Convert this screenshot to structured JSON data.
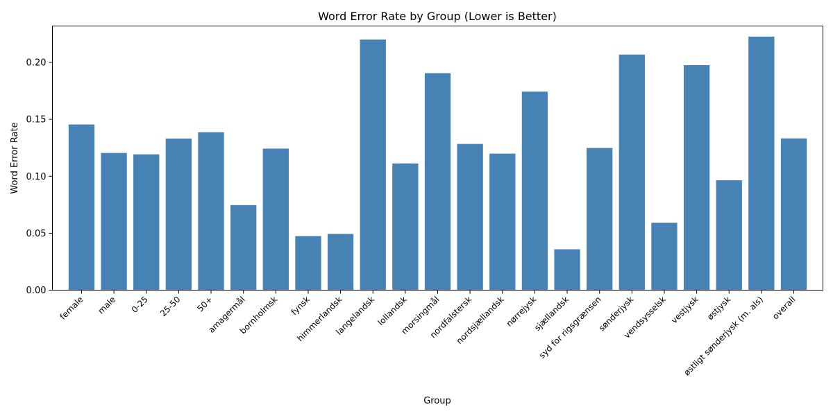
{
  "chart_data": {
    "type": "bar",
    "title": "Word Error Rate by Group (Lower is Better)",
    "xlabel": "Group",
    "ylabel": "Word Error Rate",
    "ylim": [
      0,
      0.232
    ],
    "yticks": [
      "0.00",
      "0.05",
      "0.10",
      "0.15",
      "0.20"
    ],
    "ytick_values": [
      0,
      0.05,
      0.1,
      0.15,
      0.2
    ],
    "grid": false,
    "bar_color": "#4682b4",
    "categories": [
      "female",
      "male",
      "0-25",
      "25-50",
      "50+",
      "amagermål",
      "bornholmsk",
      "fynsk",
      "himmerlandsk",
      "langelandsk",
      "lollandsk",
      "morsingmål",
      "nordfalstersk",
      "nordsjællandsk",
      "nørrejysk",
      "sjællandsk",
      "syd for rigsgrænsen",
      "sønderjysk",
      "vendsysselsk",
      "vestjysk",
      "østjysk",
      "østligt sønderjysk (m. als)",
      "overall"
    ],
    "values": [
      0.1455,
      0.1205,
      0.1193,
      0.1332,
      0.1387,
      0.0747,
      0.1243,
      0.0475,
      0.0494,
      0.2201,
      0.1113,
      0.1906,
      0.1284,
      0.1199,
      0.1744,
      0.0359,
      0.1249,
      0.2069,
      0.0592,
      0.1976,
      0.0965,
      0.2227,
      0.1333
    ]
  }
}
